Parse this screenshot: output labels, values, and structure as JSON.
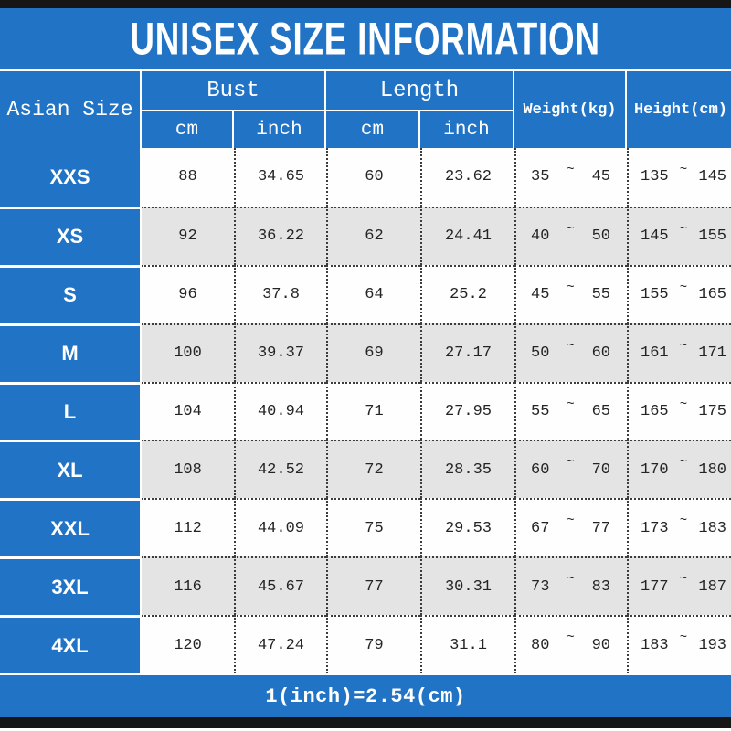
{
  "title": "UNISEX SIZE INFORMATION",
  "footer": {
    "note": "1(inch)=2.54(cm)"
  },
  "range_separator": "~",
  "colors": {
    "accent_blue": "#2173c5",
    "row_alt_gray": "#e4e4e4",
    "row_white": "#fefefe",
    "frame_black": "#161616",
    "text_dark": "#242424",
    "header_text": "#ffffff"
  },
  "table": {
    "size_column_header": "Asian Size",
    "groups": [
      {
        "label": "Bust",
        "subcolumns": [
          "cm",
          "inch"
        ]
      },
      {
        "label": "Length",
        "subcolumns": [
          "cm",
          "inch"
        ]
      }
    ],
    "weight_header": "Weight(kg)",
    "height_header": "Height(cm)",
    "rows": [
      {
        "size": "XXS",
        "bust_cm": "88",
        "bust_inch": "34.65",
        "length_cm": "60",
        "length_inch": "23.62",
        "weight_min": "35",
        "weight_max": "45",
        "height_min": "135",
        "height_max": "145"
      },
      {
        "size": "XS",
        "bust_cm": "92",
        "bust_inch": "36.22",
        "length_cm": "62",
        "length_inch": "24.41",
        "weight_min": "40",
        "weight_max": "50",
        "height_min": "145",
        "height_max": "155"
      },
      {
        "size": "S",
        "bust_cm": "96",
        "bust_inch": "37.8",
        "length_cm": "64",
        "length_inch": "25.2",
        "weight_min": "45",
        "weight_max": "55",
        "height_min": "155",
        "height_max": "165"
      },
      {
        "size": "M",
        "bust_cm": "100",
        "bust_inch": "39.37",
        "length_cm": "69",
        "length_inch": "27.17",
        "weight_min": "50",
        "weight_max": "60",
        "height_min": "161",
        "height_max": "171"
      },
      {
        "size": "L",
        "bust_cm": "104",
        "bust_inch": "40.94",
        "length_cm": "71",
        "length_inch": "27.95",
        "weight_min": "55",
        "weight_max": "65",
        "height_min": "165",
        "height_max": "175"
      },
      {
        "size": "XL",
        "bust_cm": "108",
        "bust_inch": "42.52",
        "length_cm": "72",
        "length_inch": "28.35",
        "weight_min": "60",
        "weight_max": "70",
        "height_min": "170",
        "height_max": "180"
      },
      {
        "size": "XXL",
        "bust_cm": "112",
        "bust_inch": "44.09",
        "length_cm": "75",
        "length_inch": "29.53",
        "weight_min": "67",
        "weight_max": "77",
        "height_min": "173",
        "height_max": "183"
      },
      {
        "size": "3XL",
        "bust_cm": "116",
        "bust_inch": "45.67",
        "length_cm": "77",
        "length_inch": "30.31",
        "weight_min": "73",
        "weight_max": "83",
        "height_min": "177",
        "height_max": "187"
      },
      {
        "size": "4XL",
        "bust_cm": "120",
        "bust_inch": "47.24",
        "length_cm": "79",
        "length_inch": "31.1",
        "weight_min": "80",
        "weight_max": "90",
        "height_min": "183",
        "height_max": "193"
      }
    ]
  },
  "chart_data": {
    "type": "table",
    "title": "UNISEX SIZE INFORMATION",
    "columns": [
      "Asian Size",
      "Bust cm",
      "Bust inch",
      "Length cm",
      "Length inch",
      "Weight(kg)",
      "Height(cm)"
    ],
    "rows": [
      [
        "XXS",
        88,
        34.65,
        60,
        23.62,
        "35~45",
        "135~145"
      ],
      [
        "XS",
        92,
        36.22,
        62,
        24.41,
        "40~50",
        "145~155"
      ],
      [
        "S",
        96,
        37.8,
        64,
        25.2,
        "45~55",
        "155~165"
      ],
      [
        "M",
        100,
        39.37,
        69,
        27.17,
        "50~60",
        "161~171"
      ],
      [
        "L",
        104,
        40.94,
        71,
        27.95,
        "55~65",
        "165~175"
      ],
      [
        "XL",
        108,
        42.52,
        72,
        28.35,
        "60~70",
        "170~180"
      ],
      [
        "XXL",
        112,
        44.09,
        75,
        29.53,
        "67~77",
        "173~183"
      ],
      [
        "3XL",
        116,
        45.67,
        77,
        30.31,
        "73~83",
        "177~187"
      ],
      [
        "4XL",
        120,
        47.24,
        79,
        31.1,
        "80~90",
        "183~193"
      ]
    ],
    "footnote": "1(inch)=2.54(cm)"
  }
}
